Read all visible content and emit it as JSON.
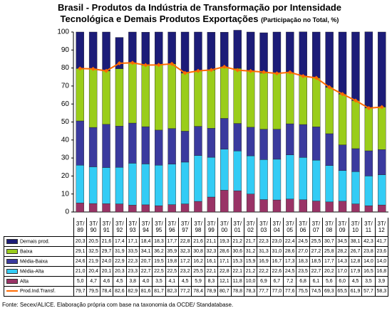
{
  "chart_data": {
    "type": "bar",
    "stacked": true,
    "title": "Brasil - Produtos da Indústria de Transformação por Intensidade Tecnológica e Demais Produtos Exportações",
    "subtitle": "(Participação no Total, %)",
    "source": "Fonte: Secex/ALICE. Elaboração própria com base na taxonomia da OCDE/ Standatabase.",
    "categories": [
      "3T/ 89",
      "3T/ 90",
      "3T/ 91",
      "3T/ 92",
      "3T/ 93",
      "3T/ 94",
      "3T/ 95",
      "3T/ 96",
      "3T/ 97",
      "3T/ 98",
      "3T/ 99",
      "3T/ 00",
      "3T/ 01",
      "3T/ 02",
      "3T/ 03",
      "3T/ 04",
      "3T/ 05",
      "3T/ 06",
      "3T/ 07",
      "3T/ 08",
      "3T/ 09",
      "3T/ 10",
      "3T/ 11",
      "3T/ 12"
    ],
    "ylim": [
      0,
      100
    ],
    "yticks": [
      0,
      10,
      20,
      30,
      40,
      50,
      60,
      70,
      80,
      90,
      100
    ],
    "series": [
      {
        "name": "Demais prod.",
        "color": "#1c1c78",
        "values": [
          20.3,
          20.5,
          21.6,
          17.4,
          17.1,
          18.4,
          18.3,
          17.7,
          22.8,
          21.6,
          21.1,
          19.3,
          21.2,
          21.7,
          22.3,
          23.0,
          22.4,
          24.5,
          25.5,
          30.7,
          34.5,
          38.1,
          42.3,
          41.7
        ],
        "value_labels": [
          "20,3",
          "20,5",
          "21,6",
          "17,4",
          "17,1",
          "18,4",
          "18,3",
          "17,7",
          "22,8",
          "21,6",
          "21,1",
          "19,3",
          "21,2",
          "21,7",
          "22,3",
          "23,0",
          "22,4",
          "24,5",
          "25,5",
          "30,7",
          "34,5",
          "38,1",
          "42,3",
          "41,7"
        ]
      },
      {
        "name": "Baixa",
        "color": "#9acd1a",
        "values": [
          29.1,
          32.5,
          29.7,
          31.9,
          33.5,
          34.1,
          36.2,
          35.9,
          32.3,
          30.8,
          32.3,
          28.6,
          30.6,
          31.2,
          31.3,
          31.0,
          28.6,
          27.0,
          27.2,
          25.8,
          28.2,
          26.7,
          23.8,
          23.6
        ],
        "value_labels": [
          "29,1",
          "32,5",
          "29,7",
          "31,9",
          "33,5",
          "34,1",
          "36,2",
          "35,9",
          "32,3",
          "30,8",
          "32,3",
          "28,6",
          "30,6",
          "31,2",
          "31,3",
          "31,0",
          "28,6",
          "27,0",
          "27,2",
          "25,8",
          "28,2",
          "26,7",
          "23,8",
          "23,6"
        ]
      },
      {
        "name": "Média-Baixa",
        "color": "#3a3a9e",
        "values": [
          24.6,
          21.9,
          24.0,
          22.9,
          22.3,
          20.7,
          19.5,
          19.8,
          17.2,
          16.2,
          16.1,
          17.1,
          15.3,
          15.9,
          16.9,
          16.7,
          17.3,
          18.3,
          18.5,
          17.7,
          14.3,
          12.8,
          14.0,
          14.0
        ],
        "value_labels": [
          "24,6",
          "21,9",
          "24,0",
          "22,9",
          "22,3",
          "20,7",
          "19,5",
          "19,8",
          "17,2",
          "16,2",
          "16,1",
          "17,1",
          "15,3",
          "15,9",
          "16,9",
          "16,7",
          "17,3",
          "18,3",
          "18,5",
          "17,7",
          "14,3",
          "12,8",
          "14,0",
          "14,0"
        ]
      },
      {
        "name": "Média-Alta",
        "color": "#33ccf5",
        "values": [
          21.0,
          20.4,
          20.1,
          20.3,
          23.3,
          22.7,
          22.5,
          22.5,
          23.2,
          25.5,
          22.1,
          22.8,
          22.1,
          21.2,
          22.2,
          22.6,
          24.5,
          23.5,
          22.7,
          20.2,
          17.0,
          17.9,
          16.5,
          16.8
        ],
        "value_labels": [
          "21,0",
          "20,4",
          "20,1",
          "20,3",
          "23,3",
          "22,7",
          "22,5",
          "22,5",
          "23,2",
          "25,5",
          "22,1",
          "22,8",
          "22,1",
          "21,2",
          "22,2",
          "22,6",
          "24,5",
          "23,5",
          "22,7",
          "20,2",
          "17,0",
          "17,9",
          "16,5",
          "16,8"
        ]
      },
      {
        "name": "Alta",
        "color": "#993366",
        "values": [
          5.0,
          4.7,
          4.6,
          4.5,
          3.8,
          4.0,
          3.5,
          4.1,
          4.5,
          5.9,
          8.3,
          12.1,
          11.8,
          10.0,
          6.9,
          6.7,
          7.2,
          6.8,
          6.1,
          5.6,
          6.0,
          4.5,
          3.5,
          3.9
        ],
        "value_labels": [
          "5,0",
          "4,7",
          "4,6",
          "4,5",
          "3,8",
          "4,0",
          "3,5",
          "4,1",
          "4,5",
          "5,9",
          "8,3",
          "12,1",
          "11,8",
          "10,0",
          "6,9",
          "6,7",
          "7,2",
          "6,8",
          "6,1",
          "5,6",
          "6,0",
          "4,5",
          "3,5",
          "3,9"
        ]
      },
      {
        "name": "Prod.Ind.Transf.",
        "type": "line",
        "color": "#ff6a00",
        "values": [
          79.7,
          79.5,
          78.4,
          82.6,
          82.9,
          81.6,
          81.7,
          82.3,
          77.2,
          78.4,
          78.9,
          80.7,
          78.8,
          78.3,
          77.7,
          77.0,
          77.6,
          75.5,
          74.5,
          69.3,
          65.5,
          61.9,
          57.7,
          58.3
        ],
        "value_labels": [
          "79,7",
          "79,5",
          "78,4",
          "82,6",
          "82,9",
          "81,6",
          "81,7",
          "82,3",
          "77,2",
          "78,4",
          "78,9",
          "80,7",
          "78,8",
          "78,3",
          "77,7",
          "77,0",
          "77,6",
          "75,5",
          "74,5",
          "69,3",
          "65,5",
          "61,9",
          "57,7",
          "58,3"
        ]
      }
    ]
  }
}
